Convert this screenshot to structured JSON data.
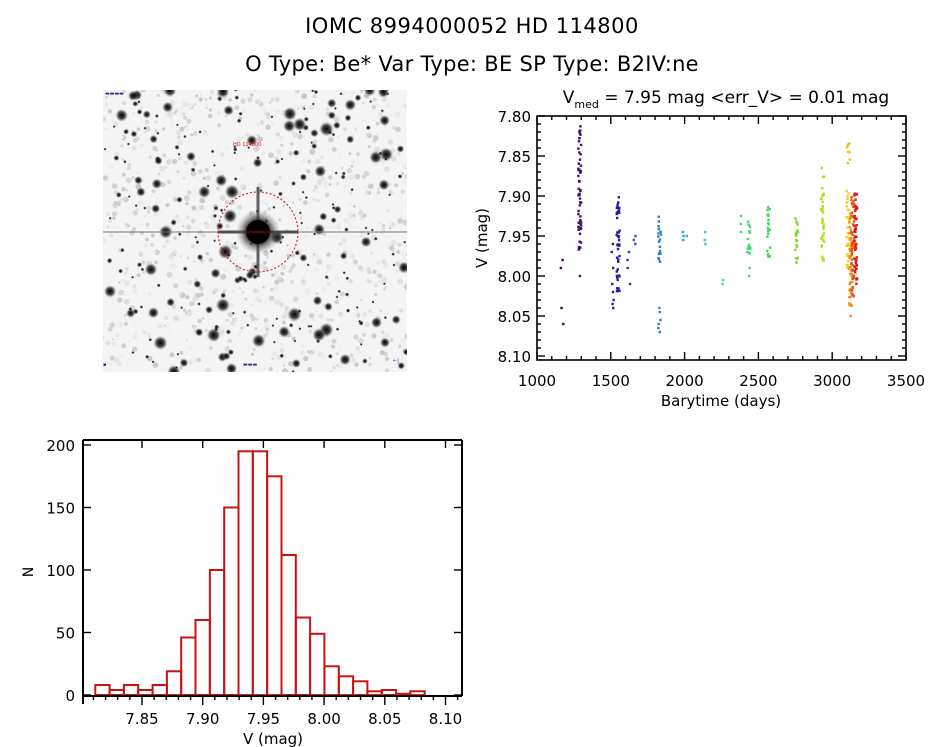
{
  "header": {
    "title_line1": "IOMC 8994000052    HD 114800",
    "title_line2": "O Type: Be*   Var Type: BE   SP Type: B2IV:ne"
  },
  "image_panel": {
    "target_label": "HD 114800",
    "target_label_color": "#d01010",
    "aperture_color": "#d01010",
    "description": "Star field cutout centred on the target with circular aperture"
  },
  "chart_data": [
    {
      "type": "scatter",
      "title_main": "V",
      "title_sub": "med",
      "title_rest": " = 7.95 mag <err_V> = 0.01 mag",
      "xlabel": "Barytime (days)",
      "ylabel": "V (mag)",
      "xlim": [
        1000,
        3500
      ],
      "ylim": [
        7.8,
        8.1
      ],
      "y_inverted": true,
      "xticks": [
        1000,
        1500,
        2000,
        2500,
        3000,
        3500
      ],
      "xtick_labels": [
        "1000",
        "1500",
        "2000",
        "2500",
        "3000",
        "3500"
      ],
      "yticks": [
        7.8,
        7.85,
        7.9,
        7.95,
        8.0,
        8.05,
        8.1
      ],
      "ytick_labels": [
        "7.80",
        "7.85",
        "7.90",
        "7.95",
        "8.00",
        "8.05",
        "8.10"
      ],
      "color_encoding": "time (purple to red)",
      "clusters": [
        {
          "t": 1170,
          "color": "#3a0a40",
          "v": [
            7.98,
            7.99,
            8.04,
            8.06
          ]
        },
        {
          "t": 1290,
          "color": "#4b0f6b",
          "v_range": [
            7.81,
            7.97
          ],
          "n": 60,
          "extra": [
            8.0
          ]
        },
        {
          "t": 1515,
          "color": "#3a1a7a",
          "v": [
            7.96,
            7.97,
            7.99,
            8.01,
            8.02,
            8.03,
            8.04,
            8.035
          ]
        },
        {
          "t": 1550,
          "color": "#2a1aa0",
          "v_range": [
            7.9,
            8.02
          ],
          "n": 45
        },
        {
          "t": 1620,
          "color": "#2a3ab0",
          "v": [
            7.97,
            7.98,
            7.99,
            8.01
          ]
        },
        {
          "t": 1660,
          "color": "#2a5ac0",
          "v": [
            7.95,
            7.955,
            7.96
          ]
        },
        {
          "t": 1830,
          "color": "#2a80c8",
          "v_range": [
            7.92,
            7.99
          ],
          "n": 18,
          "extra": [
            8.04,
            8.045,
            8.055,
            8.06,
            8.065,
            8.07
          ]
        },
        {
          "t": 1990,
          "color": "#30a0d8",
          "v": [
            7.945,
            7.95,
            7.955
          ]
        },
        {
          "t": 2010,
          "color": "#30b0d8",
          "v": [
            7.95
          ]
        },
        {
          "t": 2130,
          "color": "#40c8d0",
          "v": [
            7.945,
            7.955,
            7.96
          ]
        },
        {
          "t": 2260,
          "color": "#40d8c0",
          "v": [
            8.005,
            8.01
          ]
        },
        {
          "t": 2390,
          "color": "#40d890",
          "v": [
            7.925,
            7.935,
            7.945
          ]
        },
        {
          "t": 2435,
          "color": "#40d870",
          "v_range": [
            7.93,
            7.98
          ],
          "n": 14,
          "extra": [
            7.99,
            8.0
          ]
        },
        {
          "t": 2570,
          "color": "#40d850",
          "v_range": [
            7.91,
            7.98
          ],
          "n": 22
        },
        {
          "t": 2760,
          "color": "#80d830",
          "v_range": [
            7.925,
            7.985
          ],
          "n": 22
        },
        {
          "t": 2935,
          "color": "#b0e020",
          "v_range": [
            7.875,
            7.985
          ],
          "n": 35,
          "extra": [
            7.865
          ]
        },
        {
          "t": 3110,
          "color": "#f0c010",
          "v_range": [
            7.83,
            7.86
          ],
          "n": 8
        },
        {
          "t": 3105,
          "color": "#f0d020",
          "v_range": [
            7.89,
            7.99
          ],
          "n": 30
        },
        {
          "t": 3125,
          "color": "#f09010",
          "v_range": [
            7.92,
            8.04
          ],
          "n": 50,
          "extra": [
            8.05
          ]
        },
        {
          "t": 3140,
          "color": "#e85010",
          "v_range": [
            7.9,
            8.03
          ],
          "n": 45
        },
        {
          "t": 3160,
          "color": "#e01818",
          "v_range": [
            7.895,
            8.01
          ],
          "n": 50
        }
      ]
    },
    {
      "type": "bar",
      "subtype": "histogram",
      "xlabel": "V (mag)",
      "ylabel": "N",
      "xlim": [
        7.8,
        8.115
      ],
      "ylim": [
        0,
        200
      ],
      "xticks": [
        7.85,
        7.9,
        7.95,
        8.0,
        8.05,
        8.1
      ],
      "xtick_labels": [
        "7.85",
        "7.90",
        "7.95",
        "8.00",
        "8.05",
        "8.10"
      ],
      "yticks": [
        0,
        50,
        100,
        150,
        200
      ],
      "ytick_labels": [
        "0",
        "50",
        "100",
        "150",
        "200"
      ],
      "bar_color": "#cc1111",
      "bin_start": 7.8115,
      "bin_width": 0.0118,
      "values": [
        8,
        4,
        8,
        4,
        8,
        19,
        46,
        60,
        100,
        150,
        195,
        195,
        175,
        112,
        62,
        49,
        23,
        15,
        11,
        3,
        4,
        1,
        3
      ]
    }
  ]
}
